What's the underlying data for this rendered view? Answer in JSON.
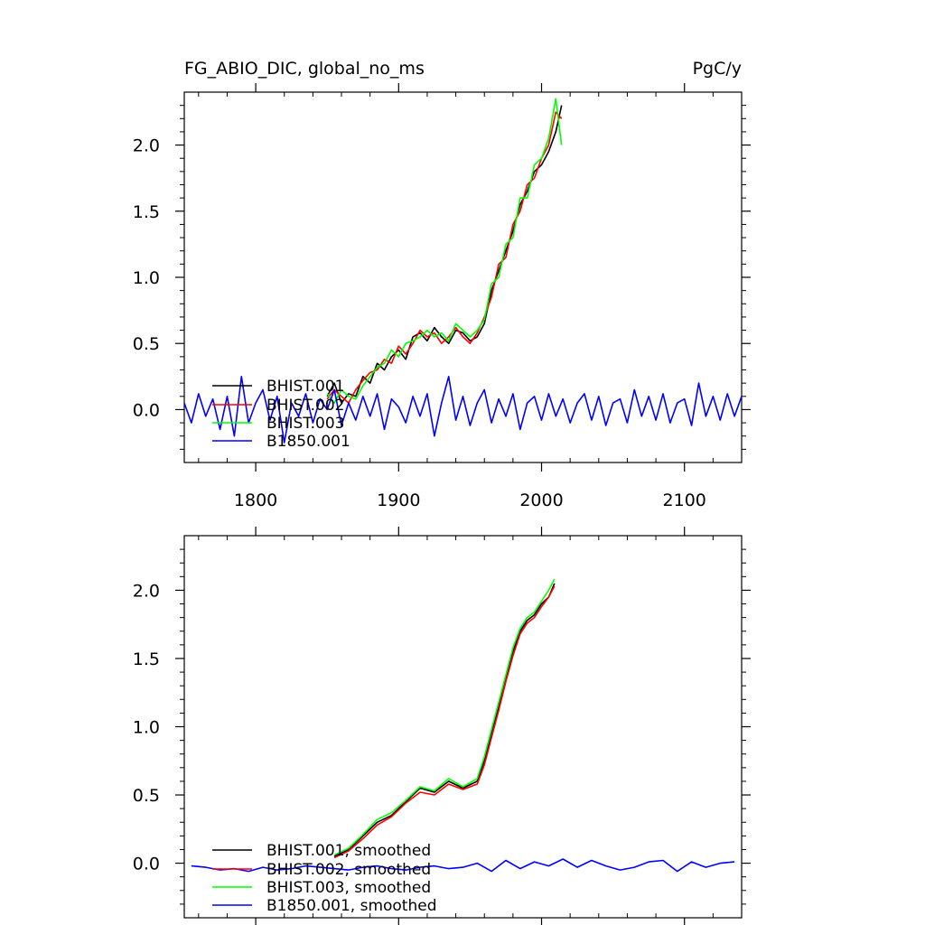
{
  "title_left": "FG_ABIO_DIC, global_no_ms",
  "title_right": "PgC/y",
  "colors": {
    "BHIST.001": "#000000",
    "BHIST.002": "#ff0000",
    "BHIST.003": "#00ff00",
    "B1850.001": "#0000ff"
  },
  "chart_data": [
    {
      "type": "line",
      "xlim": [
        1750,
        2140
      ],
      "ylim": [
        -0.4,
        2.4
      ],
      "xticks": [
        1800,
        1900,
        2000,
        2100
      ],
      "xtick_labels": [
        "1800",
        "1900",
        "2000",
        "2100"
      ],
      "yticks": [
        0.0,
        0.5,
        1.0,
        1.5,
        2.0
      ],
      "ytick_labels": [
        "0.0",
        "0.5",
        "1.0",
        "1.5",
        "2.0"
      ],
      "legend_position": "bottom-left",
      "series": [
        {
          "name": "BHIST.001",
          "color": "#000000",
          "x": [
            1850,
            1855,
            1860,
            1865,
            1870,
            1875,
            1880,
            1885,
            1890,
            1895,
            1900,
            1905,
            1910,
            1915,
            1920,
            1925,
            1930,
            1935,
            1940,
            1945,
            1950,
            1955,
            1960,
            1965,
            1970,
            1975,
            1980,
            1985,
            1990,
            1995,
            2000,
            2005,
            2010,
            2014
          ],
          "y": [
            0.1,
            0.2,
            0.05,
            0.12,
            0.1,
            0.25,
            0.2,
            0.35,
            0.3,
            0.4,
            0.45,
            0.38,
            0.55,
            0.58,
            0.52,
            0.62,
            0.55,
            0.5,
            0.6,
            0.58,
            0.52,
            0.55,
            0.65,
            0.9,
            1.05,
            1.2,
            1.35,
            1.55,
            1.65,
            1.8,
            1.85,
            1.95,
            2.1,
            2.3
          ]
        },
        {
          "name": "BHIST.002",
          "color": "#ff0000",
          "x": [
            1850,
            1855,
            1860,
            1865,
            1870,
            1875,
            1880,
            1885,
            1890,
            1895,
            1900,
            1905,
            1910,
            1915,
            1920,
            1925,
            1930,
            1935,
            1940,
            1945,
            1950,
            1955,
            1960,
            1965,
            1970,
            1975,
            1980,
            1985,
            1990,
            1995,
            2000,
            2005,
            2010,
            2014
          ],
          "y": [
            0.08,
            0.15,
            0.1,
            0.05,
            0.15,
            0.22,
            0.28,
            0.3,
            0.38,
            0.35,
            0.48,
            0.42,
            0.5,
            0.6,
            0.55,
            0.58,
            0.5,
            0.55,
            0.62,
            0.55,
            0.5,
            0.58,
            0.7,
            0.85,
            1.1,
            1.15,
            1.4,
            1.5,
            1.7,
            1.75,
            1.9,
            2.0,
            2.25,
            2.2
          ]
        },
        {
          "name": "BHIST.003",
          "color": "#00ff00",
          "x": [
            1850,
            1855,
            1860,
            1865,
            1870,
            1875,
            1880,
            1885,
            1890,
            1895,
            1900,
            1905,
            1910,
            1915,
            1920,
            1925,
            1930,
            1935,
            1940,
            1945,
            1950,
            1955,
            1960,
            1965,
            1970,
            1975,
            1980,
            1985,
            1990,
            1995,
            2000,
            2005,
            2010,
            2014
          ],
          "y": [
            0.12,
            0.05,
            0.15,
            0.1,
            0.08,
            0.18,
            0.25,
            0.32,
            0.35,
            0.45,
            0.4,
            0.5,
            0.52,
            0.55,
            0.6,
            0.55,
            0.58,
            0.52,
            0.65,
            0.6,
            0.55,
            0.6,
            0.68,
            0.95,
            1.0,
            1.25,
            1.3,
            1.6,
            1.6,
            1.85,
            1.9,
            2.05,
            2.35,
            2.0
          ]
        },
        {
          "name": "B1850.001",
          "color": "#0000ff",
          "x": [
            1750,
            1755,
            1760,
            1765,
            1770,
            1775,
            1780,
            1785,
            1790,
            1795,
            1800,
            1805,
            1810,
            1815,
            1820,
            1825,
            1830,
            1835,
            1840,
            1845,
            1850,
            1855,
            1860,
            1865,
            1870,
            1875,
            1880,
            1885,
            1890,
            1895,
            1900,
            1905,
            1910,
            1915,
            1920,
            1925,
            1930,
            1935,
            1940,
            1945,
            1950,
            1955,
            1960,
            1965,
            1970,
            1975,
            1980,
            1985,
            1990,
            1995,
            2000,
            2005,
            2010,
            2015,
            2020,
            2025,
            2030,
            2035,
            2040,
            2045,
            2050,
            2055,
            2060,
            2065,
            2070,
            2075,
            2080,
            2085,
            2090,
            2095,
            2100,
            2105,
            2110,
            2115,
            2120,
            2125,
            2130,
            2135,
            2140
          ],
          "y": [
            0.05,
            -0.1,
            0.12,
            -0.05,
            0.08,
            -0.15,
            0.1,
            -0.2,
            0.25,
            -0.1,
            0.05,
            0.15,
            -0.08,
            0.1,
            -0.25,
            0.05,
            -0.05,
            0.12,
            -0.1,
            0.08,
            0.0,
            0.15,
            -0.12,
            0.05,
            -0.08,
            0.1,
            -0.05,
            0.12,
            -0.15,
            0.08,
            0.02,
            -0.1,
            0.1,
            -0.05,
            0.12,
            -0.2,
            0.05,
            0.25,
            -0.08,
            0.1,
            -0.12,
            0.05,
            0.15,
            -0.1,
            0.08,
            -0.05,
            0.12,
            -0.15,
            0.05,
            0.1,
            -0.08,
            0.12,
            -0.05,
            0.08,
            -0.1,
            0.05,
            0.12,
            -0.08,
            0.1,
            -0.12,
            0.05,
            0.08,
            -0.1,
            0.15,
            -0.05,
            0.1,
            -0.08,
            0.12,
            -0.1,
            0.05,
            0.08,
            -0.12,
            0.2,
            -0.05,
            0.1,
            -0.08,
            0.12,
            -0.05,
            0.1
          ]
        }
      ],
      "legend": [
        {
          "label": "BHIST.001",
          "color": "#000000"
        },
        {
          "label": "BHIST.002",
          "color": "#ff0000"
        },
        {
          "label": "BHIST.003",
          "color": "#00ff00"
        },
        {
          "label": "B1850.001",
          "color": "#0000ff"
        }
      ]
    },
    {
      "type": "line",
      "xlim": [
        1750,
        2140
      ],
      "ylim": [
        -0.4,
        2.4
      ],
      "xticks": [
        1800,
        1900,
        2000,
        2100
      ],
      "xtick_labels": [],
      "yticks": [
        0.0,
        0.5,
        1.0,
        1.5,
        2.0
      ],
      "ytick_labels": [
        "0.0",
        "0.5",
        "1.0",
        "1.5",
        "2.0"
      ],
      "legend_position": "bottom-left",
      "series": [
        {
          "name": "BHIST.001, smoothed",
          "color": "#000000",
          "x": [
            1855,
            1865,
            1875,
            1885,
            1895,
            1905,
            1915,
            1925,
            1935,
            1945,
            1955,
            1960,
            1965,
            1970,
            1975,
            1980,
            1985,
            1990,
            1995,
            2000,
            2005,
            2009
          ],
          "y": [
            0.05,
            0.1,
            0.2,
            0.3,
            0.35,
            0.45,
            0.55,
            0.52,
            0.6,
            0.55,
            0.6,
            0.75,
            0.95,
            1.15,
            1.35,
            1.55,
            1.7,
            1.78,
            1.82,
            1.9,
            1.95,
            2.05
          ]
        },
        {
          "name": "BHIST.002, smoothed",
          "color": "#ff0000",
          "x": [
            1855,
            1865,
            1875,
            1885,
            1895,
            1905,
            1915,
            1925,
            1935,
            1945,
            1955,
            1960,
            1965,
            1970,
            1975,
            1980,
            1985,
            1990,
            1995,
            2000,
            2005,
            2009
          ],
          "y": [
            0.04,
            0.09,
            0.18,
            0.28,
            0.34,
            0.44,
            0.52,
            0.5,
            0.58,
            0.54,
            0.58,
            0.72,
            0.92,
            1.12,
            1.33,
            1.52,
            1.68,
            1.76,
            1.8,
            1.88,
            1.95,
            2.03
          ]
        },
        {
          "name": "BHIST.003, smoothed",
          "color": "#00ff00",
          "x": [
            1855,
            1865,
            1875,
            1885,
            1895,
            1905,
            1915,
            1925,
            1935,
            1945,
            1955,
            1960,
            1965,
            1970,
            1975,
            1980,
            1985,
            1990,
            1995,
            2000,
            2005,
            2009
          ],
          "y": [
            0.06,
            0.11,
            0.21,
            0.32,
            0.37,
            0.46,
            0.56,
            0.53,
            0.62,
            0.56,
            0.62,
            0.78,
            0.98,
            1.18,
            1.38,
            1.58,
            1.72,
            1.8,
            1.84,
            1.92,
            2.0,
            2.08
          ]
        },
        {
          "name": "B1850.001, smoothed",
          "color": "#0000ff",
          "x": [
            1755,
            1765,
            1775,
            1785,
            1795,
            1805,
            1815,
            1825,
            1835,
            1845,
            1855,
            1865,
            1875,
            1885,
            1895,
            1905,
            1915,
            1925,
            1935,
            1945,
            1955,
            1965,
            1975,
            1985,
            1995,
            2005,
            2015,
            2025,
            2035,
            2045,
            2055,
            2065,
            2075,
            2085,
            2095,
            2105,
            2115,
            2125,
            2135
          ],
          "y": [
            -0.02,
            -0.03,
            -0.05,
            -0.04,
            -0.06,
            -0.03,
            -0.05,
            -0.04,
            -0.02,
            -0.03,
            -0.04,
            -0.05,
            -0.03,
            -0.02,
            -0.04,
            -0.05,
            -0.03,
            -0.02,
            -0.04,
            -0.03,
            0.0,
            -0.06,
            0.02,
            -0.04,
            0.01,
            -0.02,
            0.03,
            -0.03,
            0.02,
            -0.02,
            -0.05,
            -0.03,
            0.01,
            0.02,
            -0.06,
            0.01,
            -0.03,
            0.0,
            0.01
          ]
        }
      ],
      "legend": [
        {
          "label": "BHIST.001, smoothed",
          "color": "#000000"
        },
        {
          "label": "BHIST.002, smoothed",
          "color": "#ff0000"
        },
        {
          "label": "BHIST.003, smoothed",
          "color": "#00ff00"
        },
        {
          "label": "B1850.001, smoothed",
          "color": "#0000ff"
        }
      ]
    }
  ]
}
